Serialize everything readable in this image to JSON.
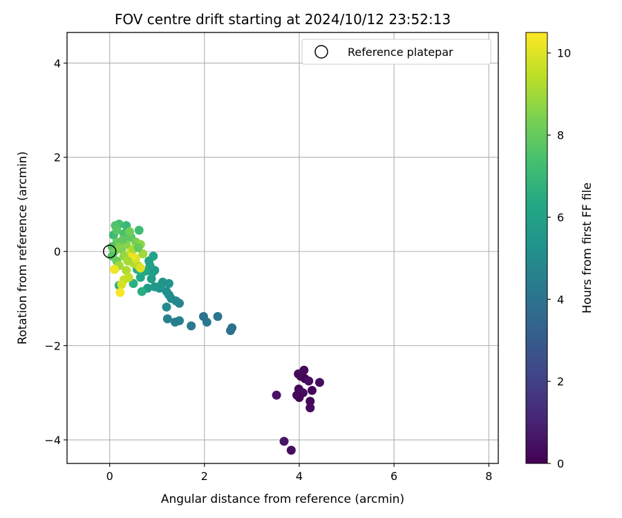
{
  "chart_data": {
    "type": "scatter",
    "title": "FOV centre drift starting at 2024/10/12 23:52:13",
    "xlabel": "Angular distance from reference (arcmin)",
    "ylabel": "Rotation from reference (arcmin)",
    "xlim": [
      -0.9,
      8.2
    ],
    "ylim": [
      -4.5,
      4.65
    ],
    "x_ticks": [
      0,
      2,
      4,
      6,
      8
    ],
    "y_ticks": [
      -4,
      -2,
      0,
      2,
      4
    ],
    "grid": true,
    "legend": {
      "placement": "top-right",
      "entries": [
        "Reference platepar"
      ]
    },
    "reference_point": {
      "x": 0,
      "y": 0
    },
    "colorbar": {
      "label": "Hours from first FF file",
      "range": [
        0,
        10.5
      ],
      "ticks": [
        0,
        2,
        4,
        6,
        8,
        10
      ],
      "colormap": "viridis"
    },
    "points": [
      {
        "x": 4.1,
        "y": -2.52,
        "h": 0.2
      },
      {
        "x": 3.98,
        "y": -2.6,
        "h": 0.3
      },
      {
        "x": 4.03,
        "y": -2.65,
        "h": 0.25
      },
      {
        "x": 4.12,
        "y": -2.7,
        "h": 0.1
      },
      {
        "x": 4.2,
        "y": -2.75,
        "h": 0.4
      },
      {
        "x": 4.43,
        "y": -2.78,
        "h": 0.35
      },
      {
        "x": 3.99,
        "y": -2.92,
        "h": 0.2
      },
      {
        "x": 4.27,
        "y": -2.95,
        "h": 0.15
      },
      {
        "x": 4.08,
        "y": -3.0,
        "h": 0.3
      },
      {
        "x": 3.95,
        "y": -3.05,
        "h": 0.25
      },
      {
        "x": 4.0,
        "y": -3.1,
        "h": 0.1
      },
      {
        "x": 3.52,
        "y": -3.05,
        "h": 0.5
      },
      {
        "x": 4.23,
        "y": -3.18,
        "h": 0.2
      },
      {
        "x": 4.23,
        "y": -3.32,
        "h": 0.3
      },
      {
        "x": 3.68,
        "y": -4.03,
        "h": 0.6
      },
      {
        "x": 3.83,
        "y": -4.22,
        "h": 0.4
      },
      {
        "x": 2.58,
        "y": -1.62,
        "h": 4.0
      },
      {
        "x": 2.55,
        "y": -1.68,
        "h": 3.9
      },
      {
        "x": 2.28,
        "y": -1.38,
        "h": 4.1
      },
      {
        "x": 2.05,
        "y": -1.5,
        "h": 4.2
      },
      {
        "x": 1.98,
        "y": -1.38,
        "h": 4.0
      },
      {
        "x": 1.72,
        "y": -1.58,
        "h": 4.3
      },
      {
        "x": 1.47,
        "y": -1.47,
        "h": 4.5
      },
      {
        "x": 1.38,
        "y": -1.5,
        "h": 4.4
      },
      {
        "x": 1.22,
        "y": -1.43,
        "h": 4.6
      },
      {
        "x": 1.47,
        "y": -1.1,
        "h": 4.7
      },
      {
        "x": 1.4,
        "y": -1.05,
        "h": 4.8
      },
      {
        "x": 1.3,
        "y": -1.0,
        "h": 4.9
      },
      {
        "x": 1.2,
        "y": -1.18,
        "h": 5.0
      },
      {
        "x": 1.25,
        "y": -0.92,
        "h": 5.1
      },
      {
        "x": 1.2,
        "y": -0.85,
        "h": 5.2
      },
      {
        "x": 1.05,
        "y": -0.78,
        "h": 5.3
      },
      {
        "x": 1.25,
        "y": -0.68,
        "h": 5.4
      },
      {
        "x": 1.12,
        "y": -0.65,
        "h": 5.5
      },
      {
        "x": 1.08,
        "y": -0.72,
        "h": 5.5
      },
      {
        "x": 0.95,
        "y": -0.75,
        "h": 5.6
      },
      {
        "x": 0.8,
        "y": -0.78,
        "h": 5.7
      },
      {
        "x": 0.88,
        "y": -0.58,
        "h": 5.8
      },
      {
        "x": 0.9,
        "y": -0.45,
        "h": 5.9
      },
      {
        "x": 0.95,
        "y": -0.4,
        "h": 5.8
      },
      {
        "x": 0.85,
        "y": -0.3,
        "h": 6.0
      },
      {
        "x": 0.92,
        "y": -0.1,
        "h": 6.1
      },
      {
        "x": 0.83,
        "y": -0.2,
        "h": 6.0
      },
      {
        "x": 0.75,
        "y": -0.42,
        "h": 6.2
      },
      {
        "x": 0.65,
        "y": -0.55,
        "h": 6.3
      },
      {
        "x": 0.68,
        "y": -0.85,
        "h": 6.5
      },
      {
        "x": 0.2,
        "y": -0.72,
        "h": 6.4
      },
      {
        "x": 0.5,
        "y": -0.68,
        "h": 6.6
      },
      {
        "x": 0.58,
        "y": -0.38,
        "h": 6.5
      },
      {
        "x": 0.62,
        "y": 0.45,
        "h": 7.2
      },
      {
        "x": 0.35,
        "y": 0.55,
        "h": 7.0
      },
      {
        "x": 0.2,
        "y": 0.58,
        "h": 7.3
      },
      {
        "x": 0.12,
        "y": 0.55,
        "h": 7.5
      },
      {
        "x": 0.08,
        "y": 0.35,
        "h": 7.1
      },
      {
        "x": 0.3,
        "y": 0.38,
        "h": 7.4
      },
      {
        "x": 0.45,
        "y": 0.3,
        "h": 7.8
      },
      {
        "x": 0.15,
        "y": 0.2,
        "h": 8.0
      },
      {
        "x": 0.05,
        "y": 0.1,
        "h": 7.6
      },
      {
        "x": 0.1,
        "y": 0.0,
        "h": 8.2
      },
      {
        "x": 0.05,
        "y": -0.1,
        "h": 7.7
      },
      {
        "x": 0.15,
        "y": -0.2,
        "h": 8.1
      },
      {
        "x": 0.25,
        "y": 0.05,
        "h": 8.4
      },
      {
        "x": 0.35,
        "y": 0.15,
        "h": 8.6
      },
      {
        "x": 0.55,
        "y": 0.2,
        "h": 8.3
      },
      {
        "x": 0.65,
        "y": 0.15,
        "h": 8.7
      },
      {
        "x": 0.3,
        "y": -0.1,
        "h": 8.8
      },
      {
        "x": 0.45,
        "y": -0.05,
        "h": 8.9
      },
      {
        "x": 0.2,
        "y": -0.3,
        "h": 9.0
      },
      {
        "x": 0.1,
        "y": -0.38,
        "h": 9.1
      },
      {
        "x": 0.35,
        "y": -0.4,
        "h": 9.2
      },
      {
        "x": 0.5,
        "y": -0.25,
        "h": 9.3
      },
      {
        "x": 0.6,
        "y": -0.3,
        "h": 9.4
      },
      {
        "x": 0.7,
        "y": -0.05,
        "h": 9.0
      },
      {
        "x": 0.4,
        "y": -0.55,
        "h": 9.5
      },
      {
        "x": 0.3,
        "y": -0.6,
        "h": 9.6
      },
      {
        "x": 0.25,
        "y": -0.7,
        "h": 9.8
      },
      {
        "x": 0.45,
        "y": 0.0,
        "h": 9.7
      },
      {
        "x": 0.55,
        "y": -0.15,
        "h": 9.9
      },
      {
        "x": 0.65,
        "y": -0.35,
        "h": 10.0
      },
      {
        "x": 0.22,
        "y": -0.87,
        "h": 10.4
      },
      {
        "x": 0.1,
        "y": -0.38,
        "h": 10.3
      },
      {
        "x": 0.48,
        "y": -0.1,
        "h": 10.2
      },
      {
        "x": 0.2,
        "y": 0.1,
        "h": 8.5
      },
      {
        "x": 0.28,
        "y": 0.25,
        "h": 7.9
      },
      {
        "x": 0.5,
        "y": 0.05,
        "h": 9.2
      },
      {
        "x": 0.6,
        "y": 0.08,
        "h": 8.0
      },
      {
        "x": 0.38,
        "y": -0.2,
        "h": 9.1
      },
      {
        "x": 0.15,
        "y": 0.45,
        "h": 7.7
      },
      {
        "x": 0.42,
        "y": 0.42,
        "h": 8.2
      }
    ]
  }
}
